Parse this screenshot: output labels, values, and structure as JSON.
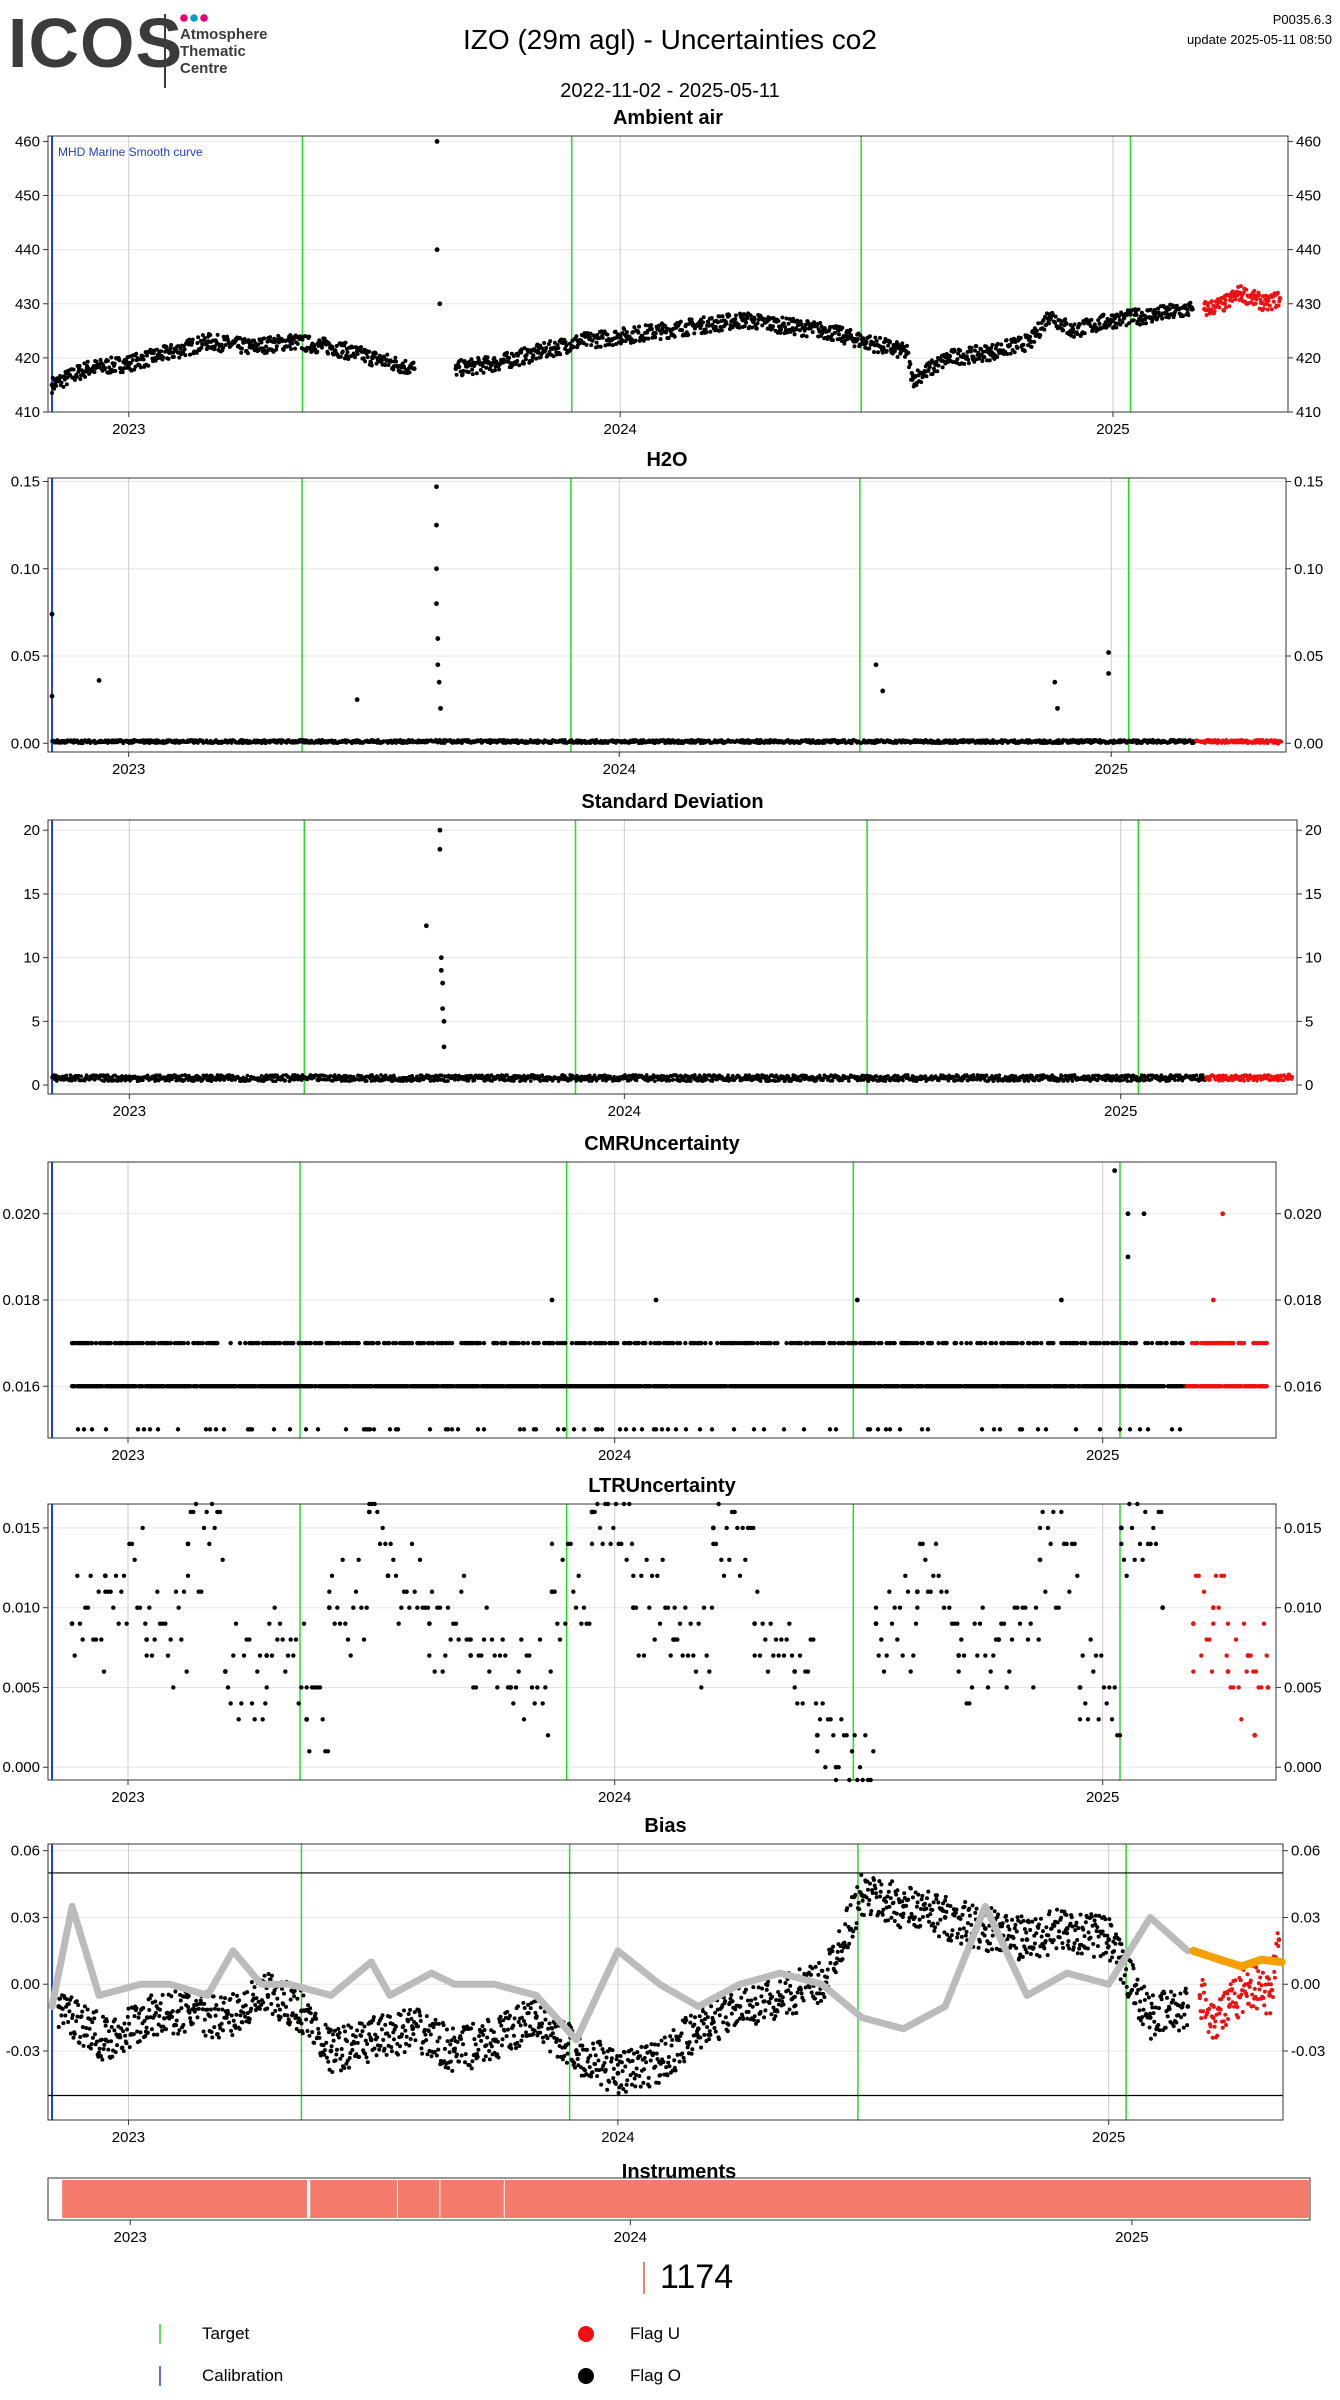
{
  "header": {
    "logo_text": "ICOS",
    "logo_subtitle": "Atmosphere\nThematic\nCentre",
    "logo_dot_colors": [
      "#e6007e",
      "#00a0c6",
      "#e6007e"
    ],
    "title": "IZO  (29m agl) - Uncertainties co2",
    "date_range": "2022-11-02 - 2025-05-11",
    "version": "P0035.6.3",
    "update": "update  2025-05-11 08:50"
  },
  "colors": {
    "target": "#22dd22",
    "calibration": "#1f3fd0",
    "flag_u": "#ee1111",
    "flag_o": "#000000",
    "bias_reference": "#bbbbbb",
    "bias_target": "#f5a000",
    "instrument": "#f47a6c"
  },
  "chart_data": [
    {
      "type": "scatter",
      "title": "Ambient air",
      "x_range": [
        "2022-11-02",
        "2025-05-11"
      ],
      "ylim": [
        410,
        461
      ],
      "yticks": [
        "410",
        "420",
        "430",
        "440",
        "450",
        "460"
      ],
      "xticks": [
        "2023",
        "2024",
        "2025"
      ],
      "annotation": "MHD Marine Smooth curve",
      "series": [
        {
          "name": "Flag O",
          "points": [
            [
              "2022-11-05",
              415
            ],
            [
              "2022-12-01",
              418
            ],
            [
              "2023-01-01",
              419
            ],
            [
              "2023-02-01",
              421
            ],
            [
              "2023-03-01",
              423
            ],
            [
              "2023-04-01",
              422
            ],
            [
              "2023-05-01",
              423
            ],
            [
              "2023-06-01",
              422
            ],
            [
              "2023-07-01",
              420
            ],
            [
              "2023-08-01",
              418
            ],
            [
              "2023-08-18",
              460
            ],
            [
              "2023-08-18",
              440
            ],
            [
              "2023-08-20",
              430
            ],
            [
              "2023-09-01",
              418
            ],
            [
              "2023-10-01",
              419
            ],
            [
              "2023-11-01",
              421
            ],
            [
              "2023-12-01",
              423
            ],
            [
              "2024-01-01",
              424
            ],
            [
              "2024-02-01",
              425
            ],
            [
              "2024-03-01",
              426
            ],
            [
              "2024-04-01",
              427
            ],
            [
              "2024-05-01",
              426
            ],
            [
              "2024-06-01",
              425
            ],
            [
              "2024-07-01",
              423
            ],
            [
              "2024-08-01",
              421
            ],
            [
              "2024-08-05",
              416
            ],
            [
              "2024-09-01",
              420
            ],
            [
              "2024-10-01",
              421
            ],
            [
              "2024-11-01",
              423
            ],
            [
              "2024-11-15",
              428
            ],
            [
              "2024-12-01",
              425
            ],
            [
              "2025-01-01",
              427
            ],
            [
              "2025-02-01",
              428
            ],
            [
              "2025-03-01",
              429
            ]
          ]
        },
        {
          "name": "Flag U",
          "points": [
            [
              "2025-03-10",
              429
            ],
            [
              "2025-03-25",
              430
            ],
            [
              "2025-04-05",
              432
            ],
            [
              "2025-04-15",
              431
            ],
            [
              "2025-04-25",
              430
            ],
            [
              "2025-05-05",
              431
            ]
          ]
        }
      ]
    },
    {
      "type": "scatter",
      "title": "H2O",
      "x_range": [
        "2022-11-02",
        "2025-05-11"
      ],
      "ylim": [
        -0.005,
        0.152
      ],
      "yticks": [
        "0.00",
        "0.05",
        "0.10",
        "0.15"
      ],
      "xticks": [
        "2023",
        "2024",
        "2025"
      ],
      "series": [
        {
          "name": "Flag O",
          "points": [
            [
              "2022-11-05",
              0.074
            ],
            [
              "2022-11-05",
              0.027
            ],
            [
              "2022-12-10",
              0.036
            ],
            [
              "2023-06-20",
              0.025
            ],
            [
              "2023-08-18",
              0.147
            ],
            [
              "2023-08-18",
              0.125
            ],
            [
              "2023-08-18",
              0.1
            ],
            [
              "2023-08-18",
              0.08
            ],
            [
              "2023-08-19",
              0.06
            ],
            [
              "2023-08-19",
              0.045
            ],
            [
              "2023-08-20",
              0.035
            ],
            [
              "2023-08-21",
              0.02
            ],
            [
              "2024-07-10",
              0.045
            ],
            [
              "2024-07-15",
              0.03
            ],
            [
              "2024-11-20",
              0.035
            ],
            [
              "2024-11-22",
              0.02
            ],
            [
              "2024-12-30",
              0.052
            ],
            [
              "2024-12-30",
              0.04
            ]
          ]
        },
        {
          "name": "Flag U",
          "points": [
            [
              "2025-03-15",
              0.001
            ],
            [
              "2025-04-10",
              0.001
            ],
            [
              "2025-05-05",
              0.0
            ]
          ]
        }
      ]
    },
    {
      "type": "scatter",
      "title": "Standard Deviation",
      "x_range": [
        "2022-11-02",
        "2025-05-11"
      ],
      "ylim": [
        -0.7,
        20.8
      ],
      "yticks": [
        "0",
        "5",
        "10",
        "15",
        "20"
      ],
      "xticks": [
        "2023",
        "2024",
        "2025"
      ],
      "series": [
        {
          "name": "Flag O",
          "points": [
            [
              "2023-08-08",
              12.5
            ],
            [
              "2023-08-18",
              20
            ],
            [
              "2023-08-18",
              18.5
            ],
            [
              "2023-08-19",
              10
            ],
            [
              "2023-08-19",
              9
            ],
            [
              "2023-08-20",
              8
            ],
            [
              "2023-08-20",
              6
            ],
            [
              "2023-08-21",
              5
            ],
            [
              "2023-08-21",
              3
            ]
          ]
        },
        {
          "name": "Flag U",
          "points": [
            [
              "2025-03-15",
              0.5
            ],
            [
              "2025-04-15",
              0.6
            ],
            [
              "2025-05-05",
              0.8
            ]
          ]
        }
      ]
    },
    {
      "type": "scatter",
      "title": "CMRUncertainty",
      "x_range": [
        "2022-11-02",
        "2025-05-11"
      ],
      "ylim": [
        0.0148,
        0.0212
      ],
      "yticks": [
        "0.016",
        "0.018",
        "0.020"
      ],
      "xticks": [
        "2023",
        "2024",
        "2025"
      ],
      "series": [
        {
          "name": "Flag O",
          "levels": [
            0.015,
            0.016,
            0.017
          ],
          "points": [
            [
              "2023-11-15",
              0.018
            ],
            [
              "2024-02-01",
              0.018
            ],
            [
              "2024-07-01",
              0.018
            ],
            [
              "2024-12-01",
              0.018
            ],
            [
              "2025-01-10",
              0.021
            ],
            [
              "2025-01-20",
              0.02
            ],
            [
              "2025-02-01",
              0.02
            ],
            [
              "2025-01-20",
              0.019
            ]
          ]
        },
        {
          "name": "Flag U",
          "levels": [
            0.016,
            0.017
          ],
          "points": [
            [
              "2025-04-01",
              0.02
            ],
            [
              "2025-03-25",
              0.018
            ]
          ]
        }
      ]
    },
    {
      "type": "scatter",
      "title": "LTRUncertainty",
      "x_range": [
        "2022-11-02",
        "2025-05-11"
      ],
      "ylim": [
        -0.0008,
        0.0165
      ],
      "yticks": [
        "0.000",
        "0.005",
        "0.010",
        "0.015"
      ],
      "xticks": [
        "2023",
        "2024",
        "2025"
      ],
      "series": [
        {
          "name": "Flag O",
          "points": [
            [
              "2022-11-20",
              0.009
            ],
            [
              "2022-12-15",
              0.012
            ],
            [
              "2023-01-15",
              0.008
            ],
            [
              "2023-02-15",
              0.014
            ],
            [
              "2023-03-15",
              0.006
            ],
            [
              "2023-04-15",
              0.007
            ],
            [
              "2023-05-15",
              0.003
            ],
            [
              "2023-06-01",
              0.01
            ],
            [
              "2023-07-01",
              0.016
            ],
            [
              "2023-07-15",
              0.012
            ],
            [
              "2023-08-15",
              0.009
            ],
            [
              "2023-09-15",
              0.007
            ],
            [
              "2023-10-15",
              0.005
            ],
            [
              "2023-11-15",
              0.011
            ],
            [
              "2023-12-15",
              0.016
            ],
            [
              "2024-01-15",
              0.01
            ],
            [
              "2024-02-15",
              0.008
            ],
            [
              "2024-03-15",
              0.015
            ],
            [
              "2024-04-15",
              0.009
            ],
            [
              "2024-05-15",
              0.006
            ],
            [
              "2024-06-01",
              0.002
            ],
            [
              "2024-06-15",
              0.0
            ],
            [
              "2024-07-15",
              0.009
            ],
            [
              "2024-08-15",
              0.011
            ],
            [
              "2024-09-15",
              0.007
            ],
            [
              "2024-10-15",
              0.008
            ],
            [
              "2024-11-15",
              0.013
            ],
            [
              "2024-12-15",
              0.005
            ],
            [
              "2025-01-15",
              0.015
            ],
            [
              "2025-02-15",
              0.01
            ]
          ]
        },
        {
          "name": "Flag U",
          "points": [
            [
              "2025-03-10",
              0.009
            ],
            [
              "2025-03-25",
              0.01
            ],
            [
              "2025-04-05",
              0.006
            ],
            [
              "2025-04-20",
              0.007
            ],
            [
              "2025-05-05",
              0.005
            ],
            [
              "2025-04-25",
              0.002
            ]
          ]
        }
      ]
    },
    {
      "type": "line",
      "title": "Bias",
      "x_range": [
        "2022-11-02",
        "2025-05-11"
      ],
      "ylim": [
        -0.061,
        0.063
      ],
      "yticks": [
        "-0.03",
        "0.00",
        "0.03",
        "0.06"
      ],
      "xticks": [
        "2023",
        "2024",
        "2025"
      ],
      "hlines": [
        0.05,
        -0.05
      ],
      "series": [
        {
          "name": "Flag O",
          "points": [
            [
              "2022-11-10",
              -0.01
            ],
            [
              "2022-12-15",
              -0.025
            ],
            [
              "2023-01-15",
              -0.015
            ],
            [
              "2023-02-15",
              -0.012
            ],
            [
              "2023-03-15",
              -0.015
            ],
            [
              "2023-04-15",
              -0.005
            ],
            [
              "2023-05-10",
              -0.012
            ],
            [
              "2023-06-01",
              -0.03
            ],
            [
              "2023-07-01",
              -0.025
            ],
            [
              "2023-08-01",
              -0.02
            ],
            [
              "2023-09-01",
              -0.03
            ],
            [
              "2023-10-01",
              -0.025
            ],
            [
              "2023-11-01",
              -0.015
            ],
            [
              "2023-12-01",
              -0.03
            ],
            [
              "2024-01-01",
              -0.04
            ],
            [
              "2024-02-01",
              -0.035
            ],
            [
              "2024-03-01",
              -0.02
            ],
            [
              "2024-04-01",
              -0.01
            ],
            [
              "2024-05-01",
              -0.005
            ],
            [
              "2024-06-01",
              0.0
            ],
            [
              "2024-07-01",
              0.04
            ],
            [
              "2024-08-01",
              0.035
            ],
            [
              "2024-09-01",
              0.03
            ],
            [
              "2024-10-01",
              0.025
            ],
            [
              "2024-11-01",
              0.02
            ],
            [
              "2024-12-01",
              0.025
            ],
            [
              "2025-01-01",
              0.02
            ],
            [
              "2025-02-01",
              -0.015
            ],
            [
              "2025-03-01",
              -0.01
            ]
          ]
        },
        {
          "name": "Flag U",
          "points": [
            [
              "2025-03-10",
              -0.005
            ],
            [
              "2025-03-20",
              -0.015
            ],
            [
              "2025-04-01",
              -0.01
            ],
            [
              "2025-04-15",
              0.0
            ],
            [
              "2025-05-01",
              -0.005
            ],
            [
              "2025-05-08",
              0.02
            ]
          ]
        },
        {
          "name": "Reference",
          "points": [
            [
              "2022-11-05",
              -0.01
            ],
            [
              "2022-11-20",
              0.035
            ],
            [
              "2022-12-10",
              -0.005
            ],
            [
              "2023-01-10",
              0.0
            ],
            [
              "2023-02-01",
              0.0
            ],
            [
              "2023-03-01",
              -0.005
            ],
            [
              "2023-03-20",
              0.015
            ],
            [
              "2023-04-10",
              0.0
            ],
            [
              "2023-05-01",
              0.0
            ],
            [
              "2023-06-01",
              -0.005
            ],
            [
              "2023-07-01",
              0.01
            ],
            [
              "2023-07-15",
              -0.005
            ],
            [
              "2023-08-15",
              0.005
            ],
            [
              "2023-09-01",
              0.0
            ],
            [
              "2023-10-01",
              0.0
            ],
            [
              "2023-11-01",
              -0.005
            ],
            [
              "2023-12-01",
              -0.025
            ],
            [
              "2024-01-01",
              0.015
            ],
            [
              "2024-02-01",
              0.0
            ],
            [
              "2024-03-01",
              -0.01
            ],
            [
              "2024-04-01",
              0.0
            ],
            [
              "2024-05-01",
              0.005
            ],
            [
              "2024-06-01",
              0.0
            ],
            [
              "2024-07-01",
              -0.015
            ],
            [
              "2024-08-01",
              -0.02
            ],
            [
              "2024-09-01",
              -0.01
            ],
            [
              "2024-10-01",
              0.035
            ],
            [
              "2024-11-01",
              -0.005
            ],
            [
              "2024-12-01",
              0.005
            ],
            [
              "2025-01-01",
              0.0
            ],
            [
              "2025-02-01",
              0.03
            ],
            [
              "2025-03-01",
              0.015
            ]
          ]
        },
        {
          "name": "Target",
          "points": [
            [
              "2025-03-05",
              0.015
            ],
            [
              "2025-03-20",
              0.012
            ],
            [
              "2025-04-10",
              0.008
            ],
            [
              "2025-04-25",
              0.011
            ],
            [
              "2025-05-10",
              0.01
            ]
          ]
        }
      ]
    },
    {
      "type": "bar",
      "title": "Instruments",
      "x_range": [
        "2022-11-02",
        "2025-05-11"
      ],
      "xticks": [
        "2023",
        "2024",
        "2025"
      ],
      "segments": [
        [
          "2022-11-12",
          "2023-05-10"
        ],
        [
          "2023-05-12",
          "2023-07-15"
        ],
        [
          "2023-07-15",
          "2023-08-15"
        ],
        [
          "2023-08-15",
          "2023-10-01"
        ],
        [
          "2023-10-01",
          "2025-05-11"
        ]
      ],
      "instrument_id": "1174"
    }
  ],
  "reference_lines": {
    "target": [
      "2023-05-10",
      "2023-11-26",
      "2024-06-28",
      "2025-01-14"
    ],
    "calibration": [
      "2022-11-05"
    ]
  },
  "legend": {
    "target": "Target",
    "calibration": "Calibration",
    "flag_u": "Flag U",
    "flag_o": "Flag O"
  }
}
